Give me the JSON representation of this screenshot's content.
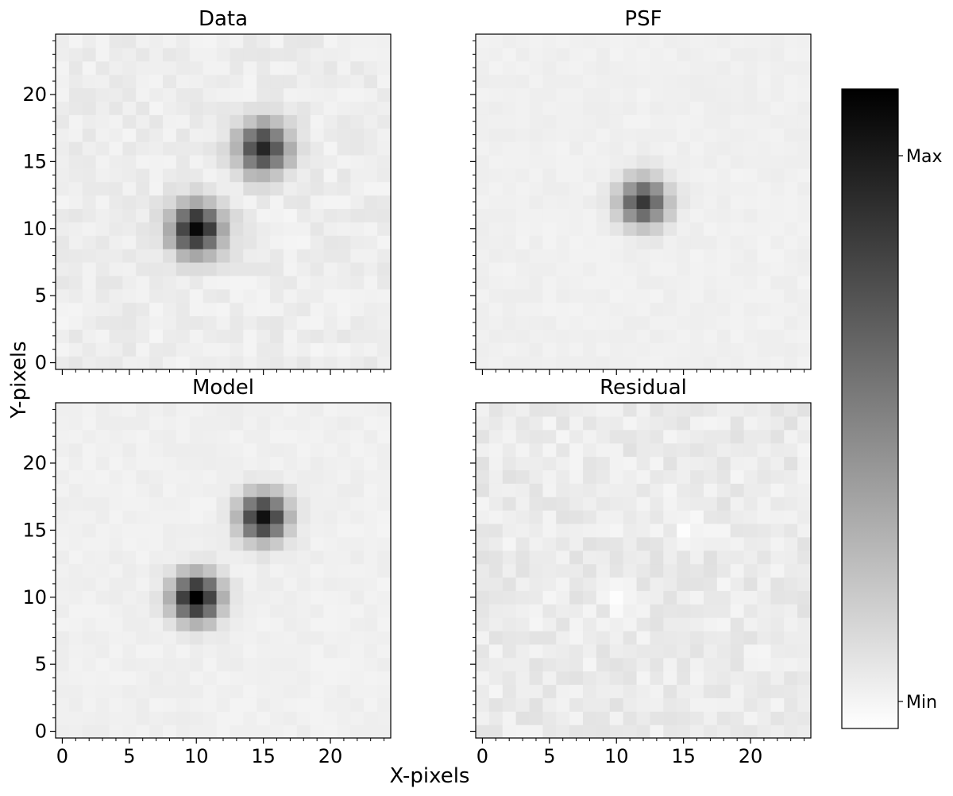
{
  "chart_data": {
    "type": "heatmap",
    "colormap": "greys",
    "grid": false,
    "xlabel": "X-pixels",
    "ylabel": "Y-pixels",
    "xlim": [
      -0.5,
      24.5
    ],
    "ylim": [
      -0.5,
      24.5
    ],
    "xticks": [
      "0",
      "5",
      "10",
      "15",
      "20"
    ],
    "yticks": [
      "0",
      "5",
      "10",
      "15",
      "20"
    ],
    "tick_values": [
      0,
      5,
      10,
      15,
      20
    ],
    "colorbar": {
      "labels": [
        "Max",
        "Min"
      ]
    },
    "panels": [
      {
        "title": "Data",
        "background": 0.07,
        "noise": 0.03,
        "sources": [
          {
            "x": 10,
            "y": 10,
            "peak": 0.9,
            "sigma": 1.3
          },
          {
            "x": 15,
            "y": 16,
            "peak": 0.78,
            "sigma": 1.3
          }
        ]
      },
      {
        "title": "PSF",
        "background": 0.06,
        "noise": 0.012,
        "sources": [
          {
            "x": 12,
            "y": 12,
            "peak": 0.72,
            "sigma": 1.2
          }
        ]
      },
      {
        "title": "Model",
        "background": 0.06,
        "noise": 0.015,
        "sources": [
          {
            "x": 10,
            "y": 10,
            "peak": 0.96,
            "sigma": 1.2
          },
          {
            "x": 15,
            "y": 16,
            "peak": 0.88,
            "sigma": 1.2
          }
        ]
      },
      {
        "title": "Residual",
        "background": 0.08,
        "noise": 0.04,
        "sources": [
          {
            "x": 15.5,
            "y": 15.5,
            "peak": -0.07,
            "sigma": 0.8
          },
          {
            "x": 10.5,
            "y": 10,
            "peak": -0.06,
            "sigma": 0.8
          }
        ]
      }
    ]
  }
}
